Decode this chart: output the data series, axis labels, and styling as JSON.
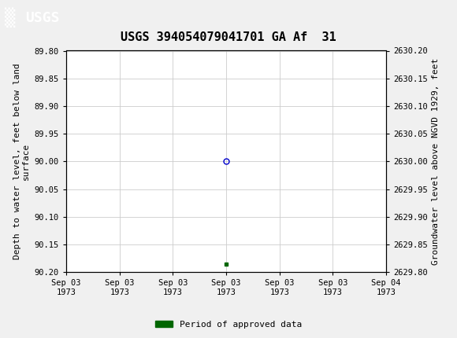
{
  "title": "USGS 394054079041701 GA Af  31",
  "header_bg_color": "#1a7a45",
  "bg_color": "#f0f0f0",
  "plot_bg_color": "#ffffff",
  "grid_color": "#cccccc",
  "ylim_left_top": 89.8,
  "ylim_left_bottom": 90.2,
  "ylim_right_top": 2630.2,
  "ylim_right_bottom": 2629.8,
  "ylabel_left": "Depth to water level, feet below land\nsurface",
  "ylabel_right": "Groundwater level above NGVD 1929, feet",
  "yticks_left": [
    89.8,
    89.85,
    89.9,
    89.95,
    90.0,
    90.05,
    90.1,
    90.15,
    90.2
  ],
  "ytick_labels_left": [
    "89.80",
    "89.85",
    "89.90",
    "89.95",
    "90.00",
    "90.05",
    "90.10",
    "90.15",
    "90.20"
  ],
  "yticks_right": [
    2630.2,
    2630.15,
    2630.1,
    2630.05,
    2630.0,
    2629.95,
    2629.9,
    2629.85,
    2629.8
  ],
  "ytick_labels_right": [
    "2630.20",
    "2630.15",
    "2630.10",
    "2630.05",
    "2630.00",
    "2629.95",
    "2629.90",
    "2629.85",
    "2629.80"
  ],
  "xlim": [
    0,
    6
  ],
  "xtick_positions": [
    0,
    1,
    2,
    3,
    4,
    5,
    6
  ],
  "xtick_labels": [
    "Sep 03\n1973",
    "Sep 03\n1973",
    "Sep 03\n1973",
    "Sep 03\n1973",
    "Sep 03\n1973",
    "Sep 03\n1973",
    "Sep 04\n1973"
  ],
  "data_point_x": 3,
  "data_point_y": 90.0,
  "data_point_color": "#0000cc",
  "data_point_markersize": 5,
  "green_square_x": 3,
  "green_square_y": 90.185,
  "green_square_color": "#006600",
  "legend_label": "Period of approved data",
  "legend_color": "#006600",
  "font_family": "DejaVu Sans Mono",
  "title_fontsize": 11,
  "axis_label_fontsize": 8,
  "tick_fontsize": 7.5,
  "legend_fontsize": 8
}
